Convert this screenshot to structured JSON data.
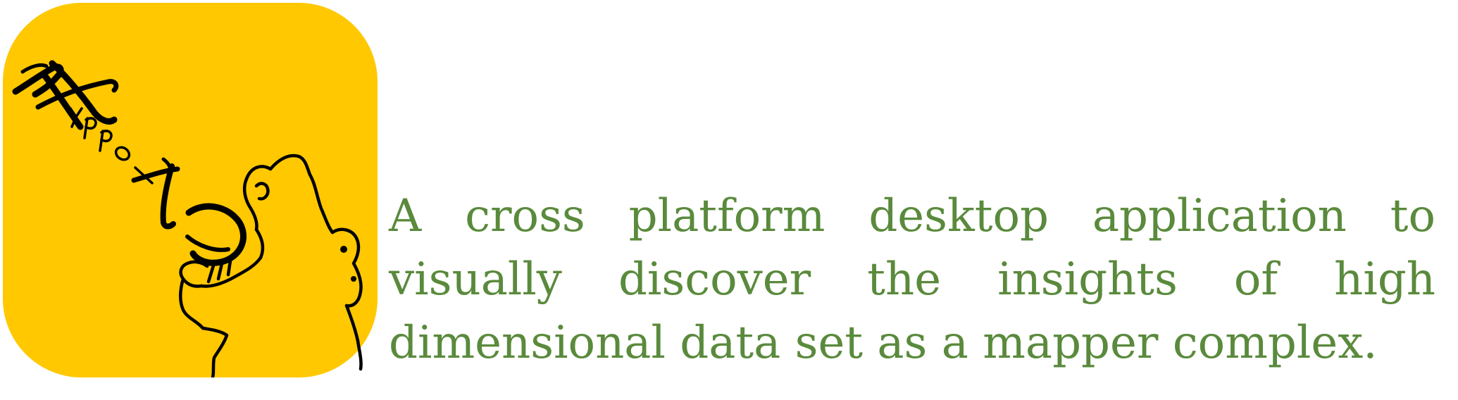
{
  "logo": {
    "wordmark": "Hyppo-X",
    "icon": "hippo-outline-logo",
    "background_color": "#ffc800",
    "ink_color": "#000000"
  },
  "tagline": {
    "text": "A cross platform desktop application to visually discover the insights of high dimensional data set as a mapper complex.",
    "color": "#5a8a3c"
  }
}
